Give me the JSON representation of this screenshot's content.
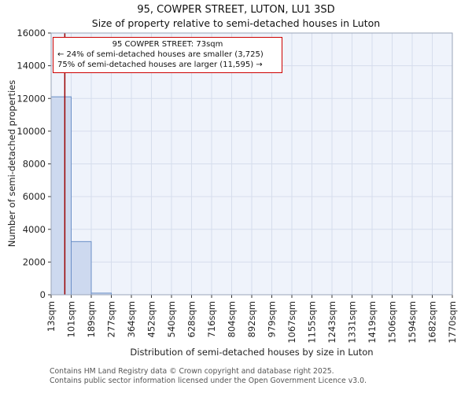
{
  "annotation": {
    "line1": "95 COWPER STREET: 73sqm",
    "line2": "← 24% of semi-detached houses are smaller (3,725)",
    "line3": "75% of semi-detached houses are larger (11,595) →"
  },
  "footer": {
    "line1": "Contains HM Land Registry data © Crown copyright and database right 2025.",
    "line2": "Contains public sector information licensed under the Open Government Licence v3.0."
  },
  "chart_data": {
    "type": "bar",
    "title": "95, COWPER STREET, LUTON, LU1 3SD",
    "subtitle": "Size of property relative to semi-detached houses in Luton",
    "xlabel": "Distribution of semi-detached houses by size in Luton",
    "ylabel": "Number of semi-detached properties",
    "categories": [
      "13sqm",
      "101sqm",
      "189sqm",
      "277sqm",
      "364sqm",
      "452sqm",
      "540sqm",
      "628sqm",
      "716sqm",
      "804sqm",
      "892sqm",
      "979sqm",
      "1067sqm",
      "1155sqm",
      "1243sqm",
      "1331sqm",
      "1419sqm",
      "1506sqm",
      "1594sqm",
      "1682sqm",
      "1770sqm"
    ],
    "values": [
      12100,
      3250,
      100,
      0,
      0,
      0,
      0,
      0,
      0,
      0,
      0,
      0,
      0,
      0,
      0,
      0,
      0,
      0,
      0,
      0
    ],
    "bin_width_sqm": 88,
    "ylim": [
      0,
      16000
    ],
    "yticks": [
      0,
      2000,
      4000,
      6000,
      8000,
      10000,
      12000,
      14000,
      16000
    ],
    "grid": true,
    "legend": "none",
    "marker": {
      "label": "95 COWPER STREET",
      "value_sqm": 73
    },
    "stats": {
      "smaller_pct": 24,
      "smaller_count": 3725,
      "larger_pct": 75,
      "larger_count": 11595
    },
    "colors": {
      "bar_fill": "#cdd9ef",
      "bar_border": "#6a8fc7",
      "plot_bg": "#eff3fb",
      "grid": "#d6ddec",
      "marker": "#990000",
      "annotation_border": "#cc0000",
      "frame": "#9aa5b8",
      "tick": "#333333",
      "text": "#222222"
    }
  }
}
